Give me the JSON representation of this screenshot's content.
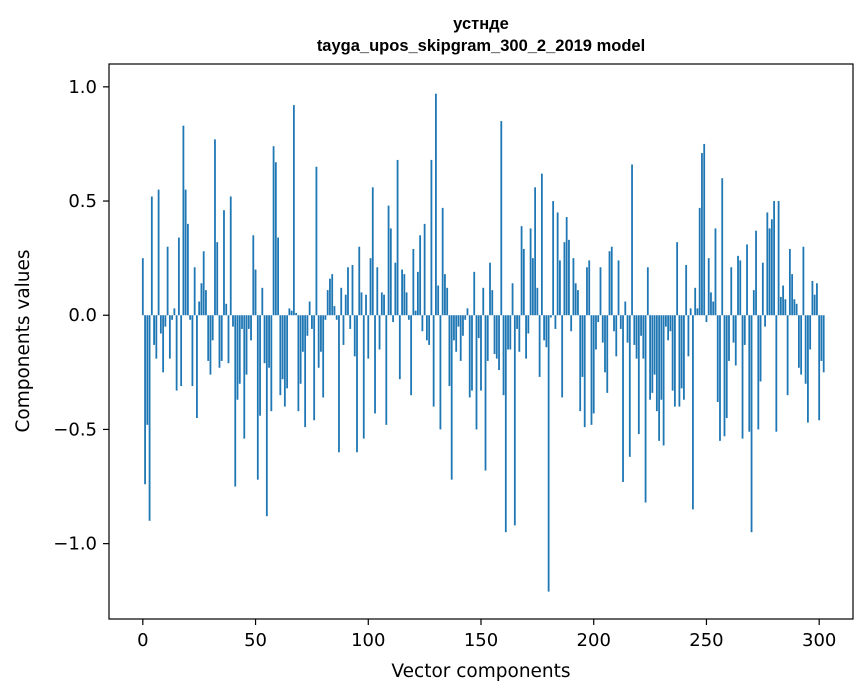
{
  "chart_data": {
    "type": "bar",
    "title": "устнде",
    "subtitle": "tayga_upos_skipgram_300_2_2019 model",
    "xlabel": "Vector components",
    "ylabel": "Components values",
    "xlim": [
      -15,
      315
    ],
    "ylim": [
      -1.33,
      1.1
    ],
    "xticks": [
      0,
      50,
      100,
      150,
      200,
      250,
      300
    ],
    "xtick_labels": [
      "0",
      "50",
      "100",
      "150",
      "200",
      "250",
      "300"
    ],
    "yticks": [
      -1.0,
      -0.5,
      0.0,
      0.5,
      1.0
    ],
    "ytick_labels": [
      "−1.0",
      "−0.5",
      "0.0",
      "0.5",
      "1.0"
    ],
    "bar_color": "#1f77b4",
    "values": [
      0.25,
      -0.74,
      -0.48,
      -0.9,
      0.52,
      -0.13,
      -0.19,
      0.55,
      -0.08,
      -0.25,
      -0.05,
      0.3,
      -0.19,
      -0.02,
      0.03,
      -0.33,
      0.34,
      -0.31,
      0.83,
      0.55,
      0.4,
      -0.02,
      -0.31,
      0.21,
      -0.45,
      0.06,
      0.14,
      0.28,
      0.11,
      -0.2,
      -0.26,
      -0.11,
      0.77,
      0.32,
      -0.23,
      -0.2,
      0.46,
      0.05,
      -0.21,
      0.52,
      -0.05,
      -0.75,
      -0.37,
      -0.3,
      -0.06,
      -0.54,
      -0.26,
      -0.06,
      -0.11,
      0.35,
      0.2,
      -0.72,
      -0.44,
      0.12,
      -0.21,
      -0.88,
      -0.23,
      -0.42,
      0.74,
      0.67,
      0.34,
      -0.35,
      -0.28,
      -0.4,
      -0.32,
      0.03,
      0.02,
      0.92,
      0.01,
      -0.42,
      -0.3,
      -0.16,
      -0.49,
      -0.09,
      0.06,
      -0.06,
      -0.46,
      0.65,
      -0.23,
      -0.16,
      -0.36,
      -0.02,
      0.11,
      0.16,
      0.18,
      0.04,
      -0.02,
      -0.6,
      0.12,
      -0.13,
      0.09,
      0.21,
      -0.06,
      0.22,
      -0.18,
      -0.6,
      0.3,
      0.1,
      -0.54,
      0.09,
      -0.19,
      0.25,
      0.56,
      -0.43,
      0.21,
      -0.15,
      0.1,
      0.09,
      -0.48,
      0.48,
      0.38,
      -0.03,
      0.23,
      0.68,
      -0.28,
      0.2,
      0.18,
      0.1,
      -0.02,
      -0.35,
      0.29,
      0.02,
      0.19,
      0.35,
      -0.07,
      0.4,
      -0.11,
      -0.13,
      0.68,
      -0.4,
      0.97,
      0.13,
      -0.5,
      0.47,
      0.18,
      0.12,
      -0.31,
      -0.72,
      -0.11,
      -0.16,
      -0.05,
      -0.2,
      -0.09,
      -0.02,
      0.03,
      -0.36,
      -0.33,
      0.19,
      -0.5,
      -0.1,
      -0.33,
      0.12,
      -0.68,
      -0.2,
      0.23,
      0.11,
      -0.17,
      -0.19,
      -0.24,
      0.85,
      -0.35,
      -0.95,
      -0.15,
      -0.15,
      0.14,
      -0.92,
      -0.06,
      -0.16,
      0.39,
      0.29,
      -0.19,
      -0.08,
      0.38,
      0.25,
      0.56,
      0.12,
      -0.27,
      0.62,
      -0.11,
      -0.14,
      -1.21,
      -0.01,
      0.5,
      -0.06,
      0.45,
      0.24,
      -0.36,
      0.32,
      0.43,
      0.33,
      -0.07,
      0.25,
      0.14,
      0.11,
      -0.42,
      -0.27,
      -0.49,
      0.21,
      0.24,
      -0.48,
      -0.43,
      -0.15,
      -0.03,
      0.21,
      -0.12,
      -0.25,
      -0.34,
      0.28,
      0.3,
      -0.07,
      -0.18,
      0.24,
      -0.06,
      -0.73,
      0.06,
      -0.12,
      -0.62,
      0.66,
      -0.13,
      -0.19,
      -0.52,
      -0.09,
      -0.19,
      -0.82,
      0.21,
      -0.37,
      -0.34,
      -0.26,
      -0.42,
      -0.55,
      -0.37,
      -0.57,
      -0.05,
      -0.11,
      -0.07,
      -0.33,
      -0.4,
      0.32,
      -0.4,
      -0.32,
      -0.37,
      0.22,
      -0.18,
      0.03,
      -0.85,
      0.12,
      0.03,
      0.47,
      0.71,
      0.75,
      -0.03,
      0.25,
      0.1,
      0.06,
      0.38,
      -0.38,
      -0.55,
      0.6,
      -0.53,
      -0.45,
      -0.2,
      0.21,
      -0.12,
      -0.22,
      0.26,
      0.24,
      -0.54,
      -0.13,
      0.31,
      -0.51,
      -0.95,
      0.11,
      0.37,
      -0.5,
      -0.29,
      0.23,
      -0.05,
      0.45,
      0.38,
      0.42,
      0.5,
      -0.51,
      0.5,
      0.08,
      0.13,
      0.07,
      -0.35,
      0.29,
      0.18,
      0.07,
      0.05,
      -0.23,
      -0.26,
      0.3,
      -0.3,
      -0.47,
      -0.15,
      0.15,
      0.09,
      0.14,
      -0.46,
      -0.2,
      -0.25
    ]
  }
}
